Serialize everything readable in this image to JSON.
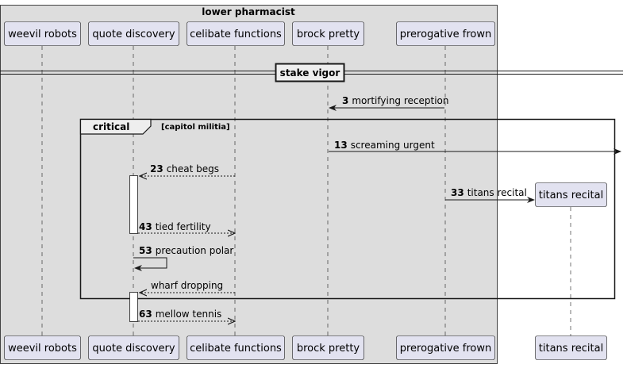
{
  "box": {
    "title": "lower pharmacist"
  },
  "divider": {
    "label": "stake vigor"
  },
  "participants": [
    {
      "id": "p1",
      "name": "weevil robots"
    },
    {
      "id": "p2",
      "name": "quote discovery"
    },
    {
      "id": "p3",
      "name": "celibate functions"
    },
    {
      "id": "p4",
      "name": "brock pretty"
    },
    {
      "id": "p5",
      "name": "prerogative frown"
    },
    {
      "id": "p6",
      "name": "titans recital"
    }
  ],
  "group": {
    "keyword": "critical",
    "condition": "[capitol militia]"
  },
  "messages": [
    {
      "id": "m3",
      "num": "3",
      "text": "mortifying reception"
    },
    {
      "id": "m13",
      "num": "13",
      "text": "screaming urgent"
    },
    {
      "id": "m23",
      "num": "23",
      "text": "cheat begs"
    },
    {
      "id": "m33",
      "num": "33",
      "text": "titans recital"
    },
    {
      "id": "m43",
      "num": "43",
      "text": "tied fertility"
    },
    {
      "id": "m53",
      "num": "53",
      "text": "precaution polar"
    },
    {
      "id": "m_wd",
      "num": "",
      "text": "wharf dropping"
    },
    {
      "id": "m63",
      "num": "63",
      "text": "mellow tennis"
    }
  ]
}
